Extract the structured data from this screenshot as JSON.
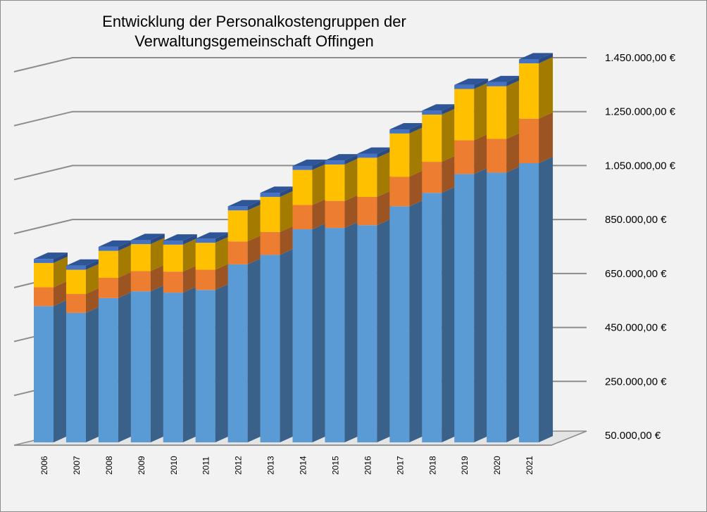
{
  "chart_data": {
    "type": "bar",
    "stacked": true,
    "three_d": true,
    "title_lines": [
      "Entwicklung der Personalkostengruppen der",
      "Verwaltungsgemeinschaft Offingen"
    ],
    "xlabel": "",
    "ylabel": "",
    "categories": [
      "2006",
      "2007",
      "2008",
      "2009",
      "2010",
      "2011",
      "2012",
      "2013",
      "2014",
      "2015",
      "2016",
      "2017",
      "2018",
      "2019",
      "2020",
      "2021"
    ],
    "y_ticks": [
      "50.000,00 €",
      "250.000,00 €",
      "450.000,00 €",
      "650.000,00 €",
      "850.000,00 €",
      "1.050.000,00 €",
      "1.250.000,00 €",
      "1.450.000,00 €"
    ],
    "ylim": [
      50000,
      1450000
    ],
    "y_axis_position": "right",
    "grid": true,
    "legend": "none",
    "series": [
      {
        "values": [
          505000,
          480000,
          535000,
          560000,
          555000,
          565000,
          660000,
          695000,
          790000,
          795000,
          805000,
          875000,
          925000,
          995000,
          1000000,
          1035000
        ]
      },
      {
        "values": [
          70000,
          70000,
          75000,
          75000,
          78000,
          75000,
          85000,
          85000,
          90000,
          100000,
          105000,
          110000,
          115000,
          125000,
          125000,
          165000
        ]
      },
      {
        "values": [
          90000,
          90000,
          100000,
          100000,
          100000,
          100000,
          115000,
          130000,
          130000,
          135000,
          145000,
          160000,
          175000,
          190000,
          195000,
          205000
        ]
      },
      {
        "values": [
          15000,
          15000,
          15000,
          15000,
          15000,
          15000,
          15000,
          15000,
          15000,
          15000,
          15000,
          15000,
          15000,
          15000,
          15000,
          15000
        ]
      }
    ],
    "colors": {
      "front": [
        "#5b9bd5",
        "#ed7d31",
        "#ffc000",
        "#4472c4"
      ],
      "side": [
        "#3a6189",
        "#9d5423",
        "#a37b00",
        "#2c4a82"
      ],
      "top": [
        "#7fb0de",
        "#f29c62",
        "#ffd24d",
        "#2e5597"
      ],
      "gridline": "#8c8c8c",
      "background": "#f2f2f2"
    }
  }
}
